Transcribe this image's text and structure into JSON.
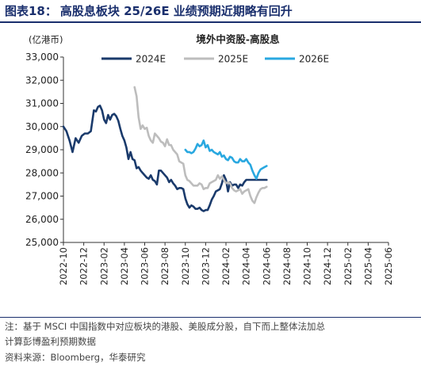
{
  "figure_title": {
    "label": "图表18：",
    "text": "高股息板块 25/26E 业绩预期近期略有回升"
  },
  "chart_data": {
    "type": "line",
    "title": "境外中资股-高股息",
    "ylabel": "(亿港币)",
    "ylim": [
      25000,
      33000
    ],
    "yticks": [
      "25,000",
      "26,000",
      "27,000",
      "28,000",
      "29,000",
      "30,000",
      "31,000",
      "32,000",
      "33,000"
    ],
    "x_categories": [
      "2022-10",
      "2022-12",
      "2023-02",
      "2023-04",
      "2023-06",
      "2023-08",
      "2023-10",
      "2023-12",
      "2024-02",
      "2024-04",
      "2024-06",
      "2024-08",
      "2024-10",
      "2024-12",
      "2025-02",
      "2025-04",
      "2025-06"
    ],
    "grid": false,
    "legend_position": "top",
    "series": [
      {
        "name": "2024E",
        "color": "#1a3a6b",
        "points": [
          [
            0,
            30000
          ],
          [
            0.15,
            29800
          ],
          [
            0.3,
            29400
          ],
          [
            0.45,
            28900
          ],
          [
            0.6,
            29500
          ],
          [
            0.75,
            29300
          ],
          [
            0.9,
            29600
          ],
          [
            1.05,
            29700
          ],
          [
            1.2,
            29700
          ],
          [
            1.35,
            29800
          ],
          [
            1.5,
            30700
          ],
          [
            1.6,
            30650
          ],
          [
            1.7,
            30850
          ],
          [
            1.8,
            30900
          ],
          [
            1.9,
            30700
          ],
          [
            2.0,
            30300
          ],
          [
            2.1,
            30150
          ],
          [
            2.2,
            30500
          ],
          [
            2.3,
            30300
          ],
          [
            2.4,
            30500
          ],
          [
            2.5,
            30550
          ],
          [
            2.6,
            30450
          ],
          [
            2.7,
            30250
          ],
          [
            2.8,
            29900
          ],
          [
            2.9,
            29600
          ],
          [
            3.0,
            29400
          ],
          [
            3.1,
            29100
          ],
          [
            3.2,
            28600
          ],
          [
            3.3,
            28900
          ],
          [
            3.4,
            28600
          ],
          [
            3.5,
            28550
          ],
          [
            3.6,
            28200
          ],
          [
            3.7,
            28250
          ],
          [
            3.8,
            28100
          ],
          [
            3.9,
            28000
          ],
          [
            4.0,
            27900
          ],
          [
            4.1,
            27800
          ],
          [
            4.2,
            27750
          ],
          [
            4.3,
            27900
          ],
          [
            4.4,
            27700
          ],
          [
            4.5,
            27650
          ],
          [
            4.6,
            27500
          ],
          [
            4.7,
            28100
          ],
          [
            4.8,
            28100
          ],
          [
            4.9,
            28000
          ],
          [
            5.0,
            27900
          ],
          [
            5.1,
            27800
          ],
          [
            5.2,
            27600
          ],
          [
            5.3,
            27700
          ],
          [
            5.4,
            27550
          ],
          [
            5.5,
            27450
          ],
          [
            5.6,
            27300
          ],
          [
            5.7,
            27350
          ],
          [
            5.8,
            27350
          ],
          [
            5.9,
            27300
          ],
          [
            6.0,
            26900
          ],
          [
            6.1,
            26650
          ],
          [
            6.2,
            26500
          ],
          [
            6.3,
            26600
          ],
          [
            6.4,
            26550
          ],
          [
            6.5,
            26450
          ],
          [
            6.6,
            26450
          ],
          [
            6.7,
            26500
          ],
          [
            6.8,
            26400
          ],
          [
            6.9,
            26350
          ],
          [
            7.0,
            26400
          ],
          [
            7.1,
            26400
          ],
          [
            7.2,
            26600
          ],
          [
            7.3,
            26850
          ],
          [
            7.4,
            27000
          ],
          [
            7.5,
            27200
          ],
          [
            7.6,
            27250
          ],
          [
            7.7,
            27300
          ],
          [
            7.8,
            27550
          ],
          [
            7.9,
            27900
          ],
          [
            8.0,
            27700
          ],
          [
            8.1,
            27200
          ],
          [
            8.2,
            27600
          ],
          [
            8.3,
            27450
          ],
          [
            8.4,
            27500
          ],
          [
            8.5,
            27500
          ],
          [
            8.6,
            27350
          ],
          [
            8.7,
            27500
          ],
          [
            8.8,
            27450
          ],
          [
            8.9,
            27600
          ],
          [
            9.0,
            27700
          ],
          [
            9.2,
            27700
          ],
          [
            9.4,
            27700
          ],
          [
            9.6,
            27700
          ],
          [
            9.8,
            27700
          ],
          [
            10.0,
            27700
          ]
        ]
      },
      {
        "name": "2025E",
        "color": "#bdbdbd",
        "points": [
          [
            3.5,
            31700
          ],
          [
            3.6,
            31300
          ],
          [
            3.7,
            30400
          ],
          [
            3.8,
            29900
          ],
          [
            3.9,
            30050
          ],
          [
            4.0,
            29900
          ],
          [
            4.1,
            29950
          ],
          [
            4.2,
            29600
          ],
          [
            4.3,
            29400
          ],
          [
            4.4,
            29300
          ],
          [
            4.5,
            29700
          ],
          [
            4.6,
            29600
          ],
          [
            4.7,
            29500
          ],
          [
            4.8,
            29350
          ],
          [
            4.9,
            29300
          ],
          [
            5.0,
            29150
          ],
          [
            5.1,
            29450
          ],
          [
            5.2,
            29200
          ],
          [
            5.3,
            29200
          ],
          [
            5.4,
            29000
          ],
          [
            5.5,
            28900
          ],
          [
            5.6,
            28800
          ],
          [
            5.7,
            28500
          ],
          [
            5.8,
            28450
          ],
          [
            5.9,
            28400
          ],
          [
            6.0,
            27900
          ],
          [
            6.1,
            27700
          ],
          [
            6.2,
            27650
          ],
          [
            6.3,
            27550
          ],
          [
            6.4,
            27450
          ],
          [
            6.5,
            27450
          ],
          [
            6.6,
            27450
          ],
          [
            6.7,
            27550
          ],
          [
            6.8,
            27500
          ],
          [
            6.9,
            27300
          ],
          [
            7.0,
            27350
          ],
          [
            7.1,
            27350
          ],
          [
            7.2,
            27550
          ],
          [
            7.3,
            27600
          ],
          [
            7.4,
            27650
          ],
          [
            7.5,
            27700
          ],
          [
            7.6,
            27900
          ],
          [
            7.7,
            27750
          ],
          [
            7.8,
            27850
          ],
          [
            7.9,
            27700
          ],
          [
            8.0,
            27550
          ],
          [
            8.1,
            27600
          ],
          [
            8.2,
            27550
          ],
          [
            8.3,
            27350
          ],
          [
            8.4,
            27250
          ],
          [
            8.5,
            27200
          ],
          [
            8.6,
            27250
          ],
          [
            8.7,
            27300
          ],
          [
            8.8,
            27100
          ],
          [
            8.9,
            27200
          ],
          [
            9.0,
            27250
          ],
          [
            9.1,
            27300
          ],
          [
            9.2,
            27000
          ],
          [
            9.3,
            26800
          ],
          [
            9.4,
            26700
          ],
          [
            9.5,
            26950
          ],
          [
            9.6,
            27150
          ],
          [
            9.7,
            27300
          ],
          [
            9.8,
            27350
          ],
          [
            9.9,
            27350
          ],
          [
            10.0,
            27400
          ]
        ]
      },
      {
        "name": "2026E",
        "color": "#29a8e0",
        "points": [
          [
            6.0,
            29000
          ],
          [
            6.1,
            28900
          ],
          [
            6.2,
            28900
          ],
          [
            6.3,
            28850
          ],
          [
            6.4,
            28900
          ],
          [
            6.5,
            29050
          ],
          [
            6.6,
            29250
          ],
          [
            6.7,
            29150
          ],
          [
            6.8,
            29200
          ],
          [
            6.9,
            29400
          ],
          [
            7.0,
            29100
          ],
          [
            7.1,
            29200
          ],
          [
            7.2,
            28950
          ],
          [
            7.3,
            29000
          ],
          [
            7.4,
            28900
          ],
          [
            7.5,
            28850
          ],
          [
            7.6,
            28800
          ],
          [
            7.7,
            28900
          ],
          [
            7.8,
            28700
          ],
          [
            7.9,
            28750
          ],
          [
            8.0,
            28600
          ],
          [
            8.1,
            28550
          ],
          [
            8.2,
            28700
          ],
          [
            8.3,
            28650
          ],
          [
            8.4,
            28500
          ],
          [
            8.5,
            28450
          ],
          [
            8.6,
            28450
          ],
          [
            8.7,
            28600
          ],
          [
            8.8,
            28500
          ],
          [
            8.9,
            28500
          ],
          [
            9.0,
            28600
          ],
          [
            9.1,
            28450
          ],
          [
            9.2,
            28350
          ],
          [
            9.3,
            28100
          ],
          [
            9.4,
            27900
          ],
          [
            9.5,
            27750
          ],
          [
            9.6,
            28000
          ],
          [
            9.7,
            28150
          ],
          [
            9.8,
            28200
          ],
          [
            9.9,
            28250
          ],
          [
            10.0,
            28300
          ]
        ]
      }
    ]
  },
  "notes": {
    "line1": "注：基于 MSCI 中国指数中对应板块的港股、美股成分股，自下而上整体法加总",
    "line2": "计算彭博盈利预期数据",
    "line3": "资料来源：Bloomberg，华泰研究"
  }
}
